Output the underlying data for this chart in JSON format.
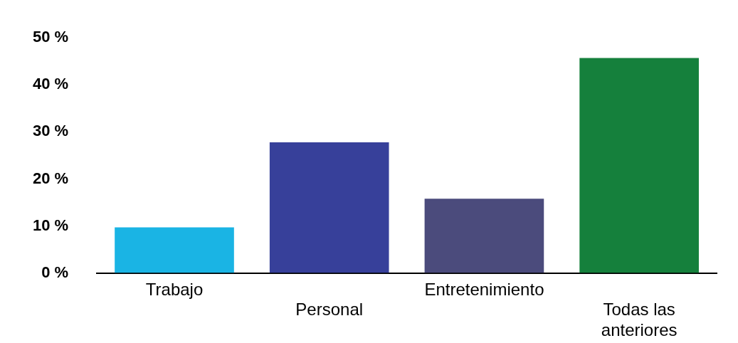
{
  "chart_data": {
    "type": "bar",
    "categories": [
      "Trabajo",
      "Personal",
      "Entretenimiento",
      "Todas las anteriores"
    ],
    "values": [
      9.7,
      27.8,
      15.8,
      45.7
    ],
    "colors": [
      "#1ab4e4",
      "#37409a",
      "#4b4b7c",
      "#15803c"
    ],
    "ylim": [
      0,
      50
    ],
    "yticks": [
      {
        "value": 0,
        "label": "0 %"
      },
      {
        "value": 10,
        "label": "10 %"
      },
      {
        "value": 20,
        "label": "20 %"
      },
      {
        "value": 30,
        "label": "30 %"
      },
      {
        "value": 40,
        "label": "40 %"
      },
      {
        "value": 50,
        "label": "50 %"
      }
    ],
    "grid": false,
    "legend": false
  }
}
